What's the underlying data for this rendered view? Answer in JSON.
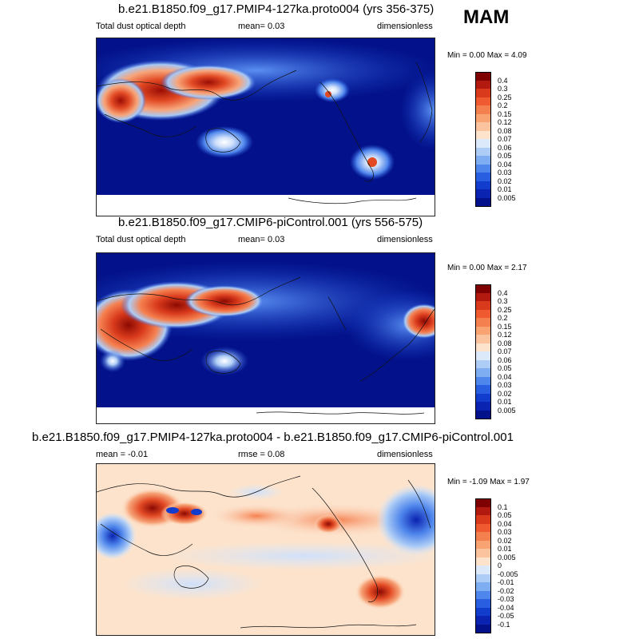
{
  "season": "MAM",
  "panels": [
    {
      "title": "b.e21.B1850.f09_g17.PMIP4-127ka.proto004 (yrs 356-375)",
      "left_label": "Total dust optical depth",
      "center_label": "mean=   0.03",
      "right_label": "dimensionless",
      "min_max": "Min =   0.00 Max =   4.09",
      "colorbar": {
        "labels": [
          "0.4",
          "0.3",
          "0.25",
          "0.2",
          "0.15",
          "0.12",
          "0.08",
          "0.07",
          "0.06",
          "0.05",
          "0.04",
          "0.03",
          "0.02",
          "0.01",
          "0.005"
        ],
        "colors": [
          "#7f0000",
          "#b21a0f",
          "#d93a1c",
          "#ef5a30",
          "#f5804f",
          "#f9a272",
          "#fbc49e",
          "#fde3cc",
          "#dbe9fa",
          "#aecdf6",
          "#7fadf2",
          "#4f86ec",
          "#2a5ee0",
          "#123ccc",
          "#0a23b0",
          "#03128a"
        ]
      },
      "chart_data": {
        "type": "heatmap",
        "variable": "Total dust optical depth",
        "units": "dimensionless",
        "mean": 0.03,
        "min": 0.0,
        "max": 4.09,
        "levels": [
          0.005,
          0.01,
          0.02,
          0.03,
          0.04,
          0.05,
          0.06,
          0.07,
          0.08,
          0.12,
          0.15,
          0.2,
          0.25,
          0.3,
          0.4
        ]
      }
    },
    {
      "title": "b.e21.B1850.f09_g17.CMIP6-piControl.001 (yrs 556-575)",
      "left_label": "Total dust optical depth",
      "center_label": "mean=   0.03",
      "right_label": "dimensionless",
      "min_max": "Min =   0.00 Max =   2.17",
      "colorbar": {
        "labels": [
          "0.4",
          "0.3",
          "0.25",
          "0.2",
          "0.15",
          "0.12",
          "0.08",
          "0.07",
          "0.06",
          "0.05",
          "0.04",
          "0.03",
          "0.02",
          "0.01",
          "0.005"
        ],
        "colors": [
          "#7f0000",
          "#b21a0f",
          "#d93a1c",
          "#ef5a30",
          "#f5804f",
          "#f9a272",
          "#fbc49e",
          "#fde3cc",
          "#dbe9fa",
          "#aecdf6",
          "#7fadf2",
          "#4f86ec",
          "#2a5ee0",
          "#123ccc",
          "#0a23b0",
          "#03128a"
        ]
      },
      "chart_data": {
        "type": "heatmap",
        "variable": "Total dust optical depth",
        "units": "dimensionless",
        "mean": 0.03,
        "min": 0.0,
        "max": 2.17,
        "levels": [
          0.005,
          0.01,
          0.02,
          0.03,
          0.04,
          0.05,
          0.06,
          0.07,
          0.08,
          0.12,
          0.15,
          0.2,
          0.25,
          0.3,
          0.4
        ]
      }
    },
    {
      "title": "b.e21.B1850.f09_g17.PMIP4-127ka.proto004 - b.e21.B1850.f09_g17.CMIP6-piControl.001",
      "left_label": "mean =  -0.01",
      "center_label": "rmse =   0.08",
      "right_label": "dimensionless",
      "min_max": "Min =  -1.09 Max =   1.97",
      "colorbar": {
        "labels": [
          "0.1",
          "0.05",
          "0.04",
          "0.03",
          "0.02",
          "0.01",
          "0.005",
          "0",
          "-0.005",
          "-0.01",
          "-0.02",
          "-0.03",
          "-0.04",
          "-0.05",
          "-0.1"
        ],
        "colors": [
          "#7f0000",
          "#b21a0f",
          "#d93a1c",
          "#ef5a30",
          "#f5804f",
          "#f9a272",
          "#fbc49e",
          "#fde3cc",
          "#dbe9fa",
          "#aecdf6",
          "#7fadf2",
          "#4f86ec",
          "#2a5ee0",
          "#123ccc",
          "#0a23b0",
          "#03128a"
        ]
      },
      "chart_data": {
        "type": "heatmap",
        "variable": "difference",
        "units": "dimensionless",
        "mean": -0.01,
        "rmse": 0.08,
        "min": -1.09,
        "max": 1.97,
        "levels": [
          -0.1,
          -0.05,
          -0.04,
          -0.03,
          -0.02,
          -0.01,
          -0.005,
          0,
          0.005,
          0.01,
          0.02,
          0.03,
          0.04,
          0.05,
          0.1
        ]
      }
    }
  ]
}
